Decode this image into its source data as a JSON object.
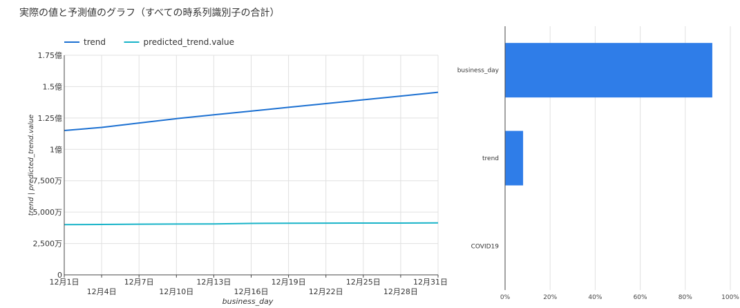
{
  "title": "実際の値と予測値のグラフ（すべての時系列識別子の合計）",
  "colors": {
    "trend": "#1a6fd1",
    "predicted": "#17b3c8",
    "bar": "#2f7de8",
    "grid": "#e0e0e0",
    "axis": "#444444"
  },
  "chart_data": [
    {
      "type": "line",
      "legend_position": "top-left",
      "grid": true,
      "xlabel": "business_day",
      "ylabel": "trend | predicted_trend.value",
      "x": [
        "12月1日",
        "12月4日",
        "12月7日",
        "12月10日",
        "12月13日",
        "12月16日",
        "12月19日",
        "12月22日",
        "12月25日",
        "12月28日",
        "12月31日"
      ],
      "x_tick_labels": [
        "12月1日",
        "12月4日",
        "12月7日",
        "12月10日",
        "12月13日",
        "12月16日",
        "12月19日",
        "12月22日",
        "12月25日",
        "12月28日",
        "12月31日"
      ],
      "ylim": [
        0,
        175000000
      ],
      "y_ticks": [
        0,
        25000000,
        50000000,
        75000000,
        100000000,
        125000000,
        150000000,
        175000000
      ],
      "y_tick_labels": [
        "0",
        "2,500万",
        "5,000万",
        "7,500万",
        "1億",
        "1.25億",
        "1.5億",
        "1.75億"
      ],
      "series": [
        {
          "name": "trend",
          "values": [
            115000000,
            117500000,
            121000000,
            124500000,
            127500000,
            130500000,
            133500000,
            136500000,
            139500000,
            142500000,
            145500000
          ]
        },
        {
          "name": "predicted_trend.value",
          "values": [
            40000000,
            40200000,
            40400000,
            40500000,
            40600000,
            41000000,
            41100000,
            41200000,
            41300000,
            41300000,
            41400000
          ]
        }
      ]
    },
    {
      "type": "bar",
      "orientation": "horizontal",
      "grid": true,
      "categories": [
        "business_day",
        "trend",
        "COVID19"
      ],
      "values": [
        92,
        8,
        0
      ],
      "xlim": [
        0,
        100
      ],
      "x_ticks": [
        0,
        20,
        40,
        60,
        80,
        100
      ],
      "x_tick_labels": [
        "0%",
        "20%",
        "40%",
        "60%",
        "80%",
        "100%"
      ]
    }
  ]
}
